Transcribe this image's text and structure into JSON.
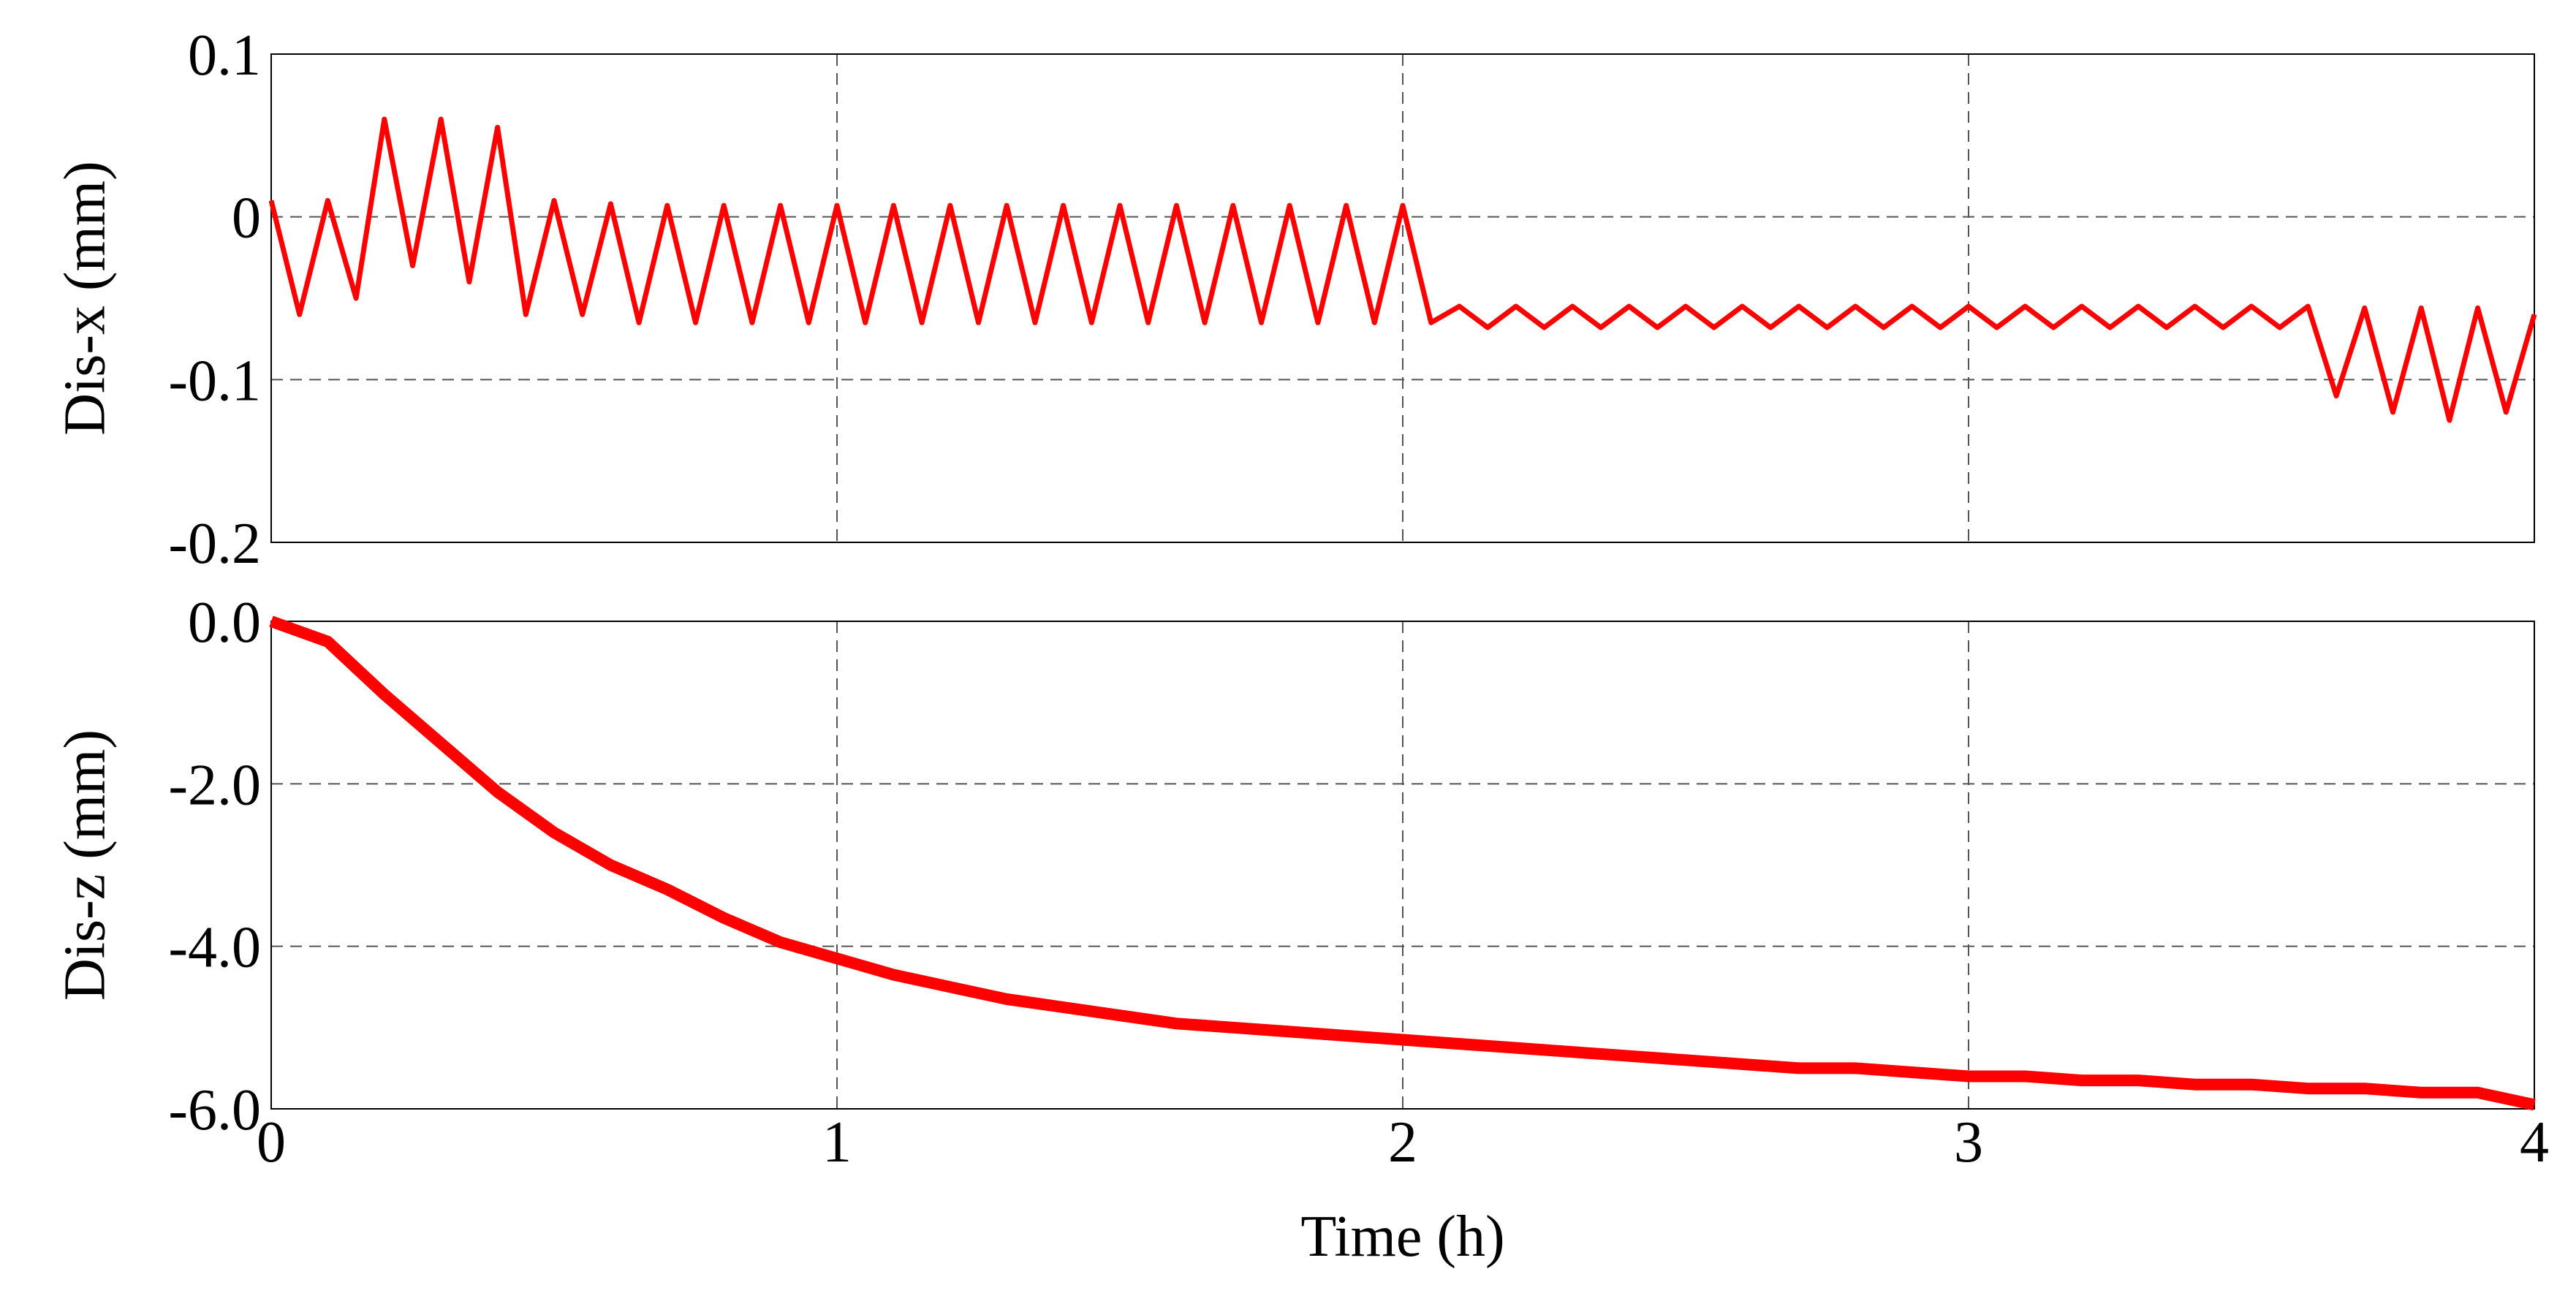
{
  "chart_data": [
    {
      "type": "line",
      "ylabel": "Dis-x (mm)",
      "color": "#ff0000",
      "grid": true,
      "xlim": [
        0,
        4
      ],
      "xticks": [
        0,
        1,
        2,
        3,
        4
      ],
      "ylim": [
        -0.2,
        0.1
      ],
      "yticks": [
        -0.2,
        -0.1,
        0,
        0.1
      ],
      "x": [
        0,
        0.05,
        0.1,
        0.15,
        0.2,
        0.25,
        0.3,
        0.35,
        0.4,
        0.45,
        0.5,
        0.55,
        0.6,
        0.65,
        0.7,
        0.75,
        0.8,
        0.85,
        0.9,
        0.95,
        1,
        1.05,
        1.1,
        1.15,
        1.2,
        1.25,
        1.3,
        1.35,
        1.4,
        1.45,
        1.5,
        1.55,
        1.6,
        1.65,
        1.7,
        1.75,
        1.8,
        1.85,
        1.9,
        1.95,
        2,
        2.05,
        2.1,
        2.15,
        2.2,
        2.25,
        2.3,
        2.35,
        2.4,
        2.45,
        2.5,
        2.55,
        2.6,
        2.65,
        2.7,
        2.75,
        2.8,
        2.85,
        2.9,
        2.95,
        3,
        3.05,
        3.1,
        3.15,
        3.2,
        3.25,
        3.3,
        3.35,
        3.4,
        3.45,
        3.5,
        3.55,
        3.6,
        3.65,
        3.7,
        3.75,
        3.8,
        3.85,
        3.9,
        3.95,
        4
      ],
      "values": [
        0.01,
        -0.06,
        0.01,
        -0.05,
        0.06,
        -0.03,
        0.06,
        -0.04,
        0.055,
        -0.06,
        0.01,
        -0.06,
        0.008,
        -0.065,
        0.007,
        -0.065,
        0.007,
        -0.065,
        0.007,
        -0.065,
        0.007,
        -0.065,
        0.007,
        -0.065,
        0.007,
        -0.065,
        0.007,
        -0.065,
        0.007,
        -0.065,
        0.007,
        -0.065,
        0.007,
        -0.065,
        0.007,
        -0.065,
        0.007,
        -0.065,
        0.007,
        -0.065,
        0.007,
        -0.065,
        -0.055,
        -0.068,
        -0.055,
        -0.068,
        -0.055,
        -0.068,
        -0.055,
        -0.068,
        -0.055,
        -0.068,
        -0.055,
        -0.068,
        -0.055,
        -0.068,
        -0.055,
        -0.068,
        -0.055,
        -0.068,
        -0.055,
        -0.068,
        -0.055,
        -0.068,
        -0.055,
        -0.068,
        -0.055,
        -0.068,
        -0.055,
        -0.068,
        -0.055,
        -0.068,
        -0.055,
        -0.11,
        -0.056,
        -0.12,
        -0.056,
        -0.125,
        -0.056,
        -0.12,
        -0.06
      ]
    },
    {
      "type": "line",
      "ylabel": "Dis-z (mm)",
      "xlabel": "Time (h)",
      "color": "#ff0000",
      "grid": true,
      "xlim": [
        0,
        4
      ],
      "xticks": [
        0,
        1,
        2,
        3,
        4
      ],
      "ylim": [
        -6,
        0
      ],
      "yticks": [
        {
          "value": -6,
          "label": "-6.0"
        },
        {
          "value": -4,
          "label": "-4.0"
        },
        {
          "value": -2,
          "label": "-2.0"
        },
        {
          "value": 0,
          "label": "0.0"
        }
      ],
      "x": [
        0,
        0.1,
        0.2,
        0.3,
        0.4,
        0.5,
        0.6,
        0.7,
        0.8,
        0.9,
        1,
        1.1,
        1.2,
        1.3,
        1.4,
        1.5,
        1.6,
        1.7,
        1.8,
        1.9,
        2,
        2.1,
        2.2,
        2.3,
        2.4,
        2.5,
        2.6,
        2.7,
        2.8,
        2.9,
        3,
        3.1,
        3.2,
        3.3,
        3.4,
        3.5,
        3.6,
        3.7,
        3.8,
        3.9,
        4
      ],
      "values": [
        0,
        -0.25,
        -0.9,
        -1.5,
        -2.1,
        -2.6,
        -3.0,
        -3.3,
        -3.65,
        -3.95,
        -4.15,
        -4.35,
        -4.5,
        -4.65,
        -4.75,
        -4.85,
        -4.95,
        -5.0,
        -5.05,
        -5.1,
        -5.15,
        -5.2,
        -5.25,
        -5.3,
        -5.35,
        -5.4,
        -5.45,
        -5.5,
        -5.5,
        -5.55,
        -5.6,
        -5.6,
        -5.65,
        -5.65,
        -5.7,
        -5.7,
        -5.75,
        -5.75,
        -5.8,
        -5.8,
        -5.95
      ]
    }
  ]
}
